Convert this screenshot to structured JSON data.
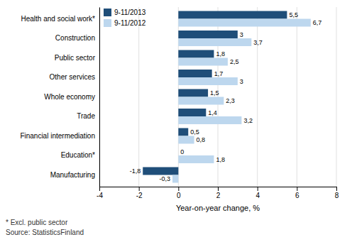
{
  "chart_data": {
    "type": "bar",
    "orientation": "horizontal",
    "categories": [
      "Manufacturing",
      "Education*",
      "Financial intermediation",
      "Trade",
      "Whole economy",
      "Other services",
      "Public sector",
      "Construction",
      "Health and social work*"
    ],
    "series": [
      {
        "name": "9-11/2013",
        "color": "#1F4E79",
        "values": [
          -1.8,
          0.0,
          0.5,
          1.4,
          1.5,
          1.7,
          1.8,
          3.0,
          5.5
        ],
        "value_labels": [
          "-1,8",
          "0",
          "0,5",
          "1,4",
          "1,5",
          "1,7",
          "1,8",
          "3",
          "5,5"
        ]
      },
      {
        "name": "9-11/2012",
        "color": "#BDD7EE",
        "values": [
          -0.3,
          1.8,
          0.8,
          3.2,
          2.3,
          3.0,
          2.5,
          3.7,
          6.7
        ],
        "value_labels": [
          "-0,3",
          "1,8",
          "0,8",
          "3,2",
          "2,3",
          "3",
          "2,5",
          "3,7",
          "6,7"
        ]
      }
    ],
    "xlabel": "Year-on-year change, %",
    "xlim": [
      -4,
      8
    ],
    "xticks": [
      -4,
      -2,
      0,
      2,
      4,
      6,
      8
    ],
    "grid": true,
    "data_labels": true,
    "legend": "upper left",
    "annotations": [
      "* Excl. public sector",
      "Source: StatisticsFinland"
    ]
  }
}
